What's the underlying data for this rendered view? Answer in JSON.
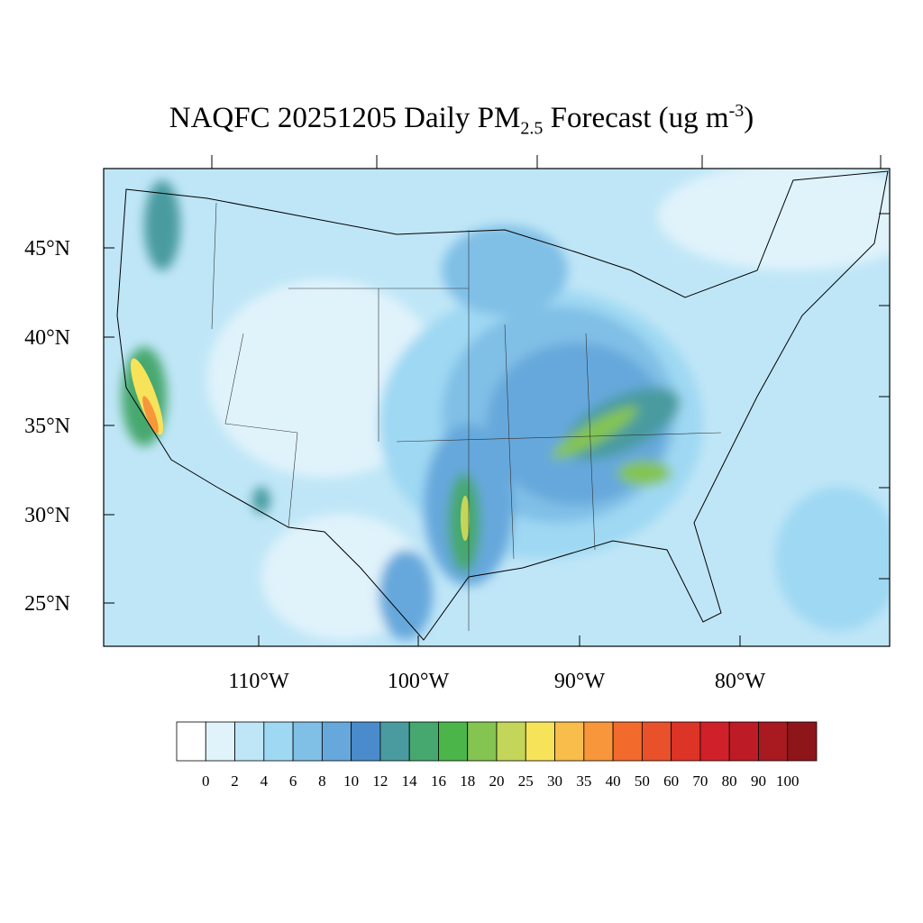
{
  "title": {
    "main": "NAQFC 20251205 Daily PM",
    "sub": "2.5",
    "rest": " Forecast (ug m",
    "sup": "-3",
    "end": ")"
  },
  "map": {
    "lat_labels": [
      "45°N",
      "40°N",
      "35°N",
      "30°N",
      "25°N"
    ],
    "lon_labels": [
      "110°W",
      "100°W",
      "90°W",
      "80°W"
    ]
  },
  "colorbar": {
    "levels": [
      0,
      2,
      4,
      6,
      8,
      10,
      12,
      14,
      16,
      18,
      20,
      25,
      30,
      35,
      40,
      50,
      60,
      70,
      80,
      90,
      100
    ],
    "colors": [
      "#ffffff",
      "#e0f3fb",
      "#bfe6f7",
      "#9fd8f3",
      "#80bfe6",
      "#66a8dc",
      "#4a8ccb",
      "#4a9ba0",
      "#46a86e",
      "#4bb54a",
      "#84c451",
      "#c4d65a",
      "#f7e35a",
      "#f8bd4a",
      "#f7963a",
      "#f26a2c",
      "#e8512a",
      "#dc3426",
      "#d0202a",
      "#bd1b25",
      "#a81a20",
      "#8e161b"
    ]
  }
}
